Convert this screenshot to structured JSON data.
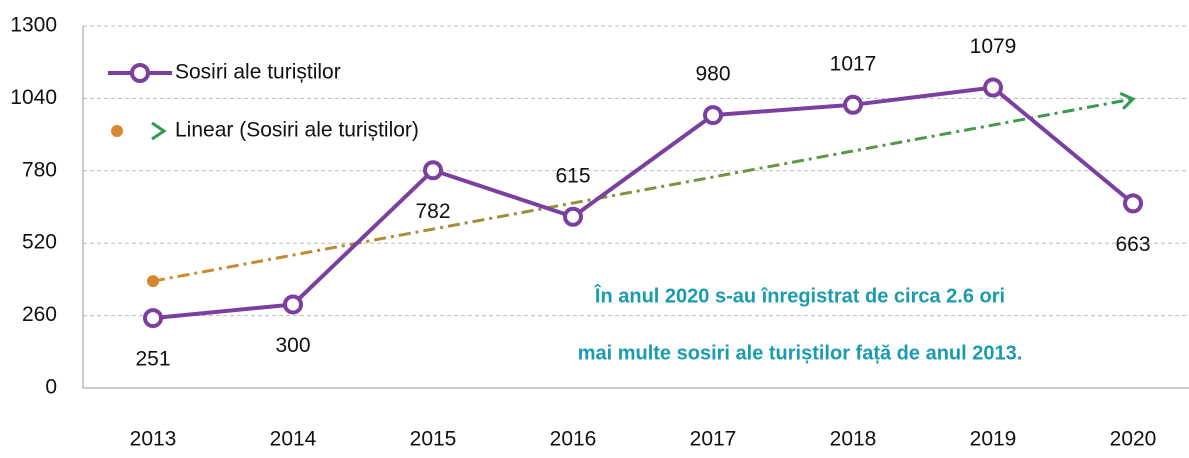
{
  "chart_data": {
    "type": "line",
    "categories": [
      "2013",
      "2014",
      "2015",
      "2016",
      "2017",
      "2018",
      "2019",
      "2020"
    ],
    "series": [
      {
        "name": "Sosiri ale turiștilor",
        "color": "#7b3fa0",
        "values": [
          251,
          300,
          782,
          615,
          980,
          1017,
          1079,
          663
        ]
      }
    ],
    "trendline": {
      "name": "Linear (Sosiri ale turiștilor)",
      "color_start": "#d4892e",
      "color_end": "#2e9a54"
    },
    "ylim": [
      0,
      1300
    ],
    "yticks": [
      0,
      260,
      520,
      780,
      1040,
      1300
    ],
    "grid": true,
    "annotation": [
      "În anul 2020 s-au înregistrat de circa 2.6 ori",
      "mai multe sosiri ale turiștilor față de anul 2013."
    ]
  }
}
